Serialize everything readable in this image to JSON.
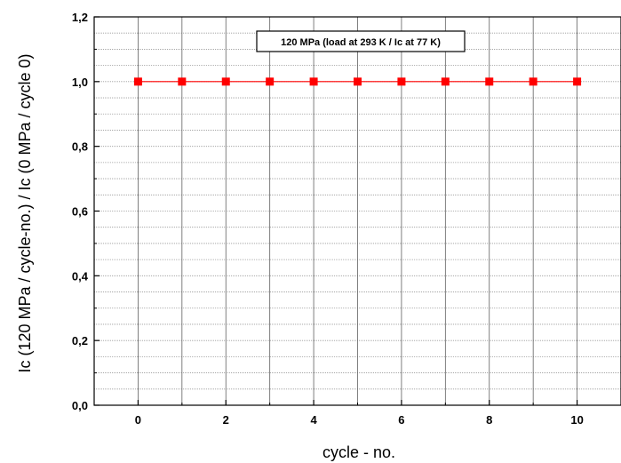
{
  "chart_data": {
    "type": "line",
    "title": "",
    "xlabel": "cycle - no.",
    "ylabel": "Ic (120 MPa / cycle-no.) / Ic (0 MPa / cycle 0)",
    "xlim": [
      -1,
      11
    ],
    "ylim": [
      0,
      1.2
    ],
    "x_ticks": [
      0,
      2,
      4,
      6,
      8,
      10
    ],
    "x_tick_labels": [
      "0",
      "2",
      "4",
      "6",
      "8",
      "10"
    ],
    "y_ticks": [
      0,
      0.2,
      0.4,
      0.6,
      0.8,
      1.0,
      1.2
    ],
    "y_tick_labels": [
      "0,0",
      "0,2",
      "0,4",
      "0,6",
      "0,8",
      "1,0",
      "1,2"
    ],
    "grid": true,
    "legend_position": "top-center",
    "series": [
      {
        "name": "120 MPa (load at 293 K / Ic at 77 K)",
        "color": "#ff0000",
        "marker": "square",
        "x": [
          0,
          1,
          2,
          3,
          4,
          5,
          6,
          7,
          8,
          9,
          10
        ],
        "y": [
          1.0,
          1.0,
          1.0,
          1.0,
          1.0,
          1.0,
          1.0,
          1.0,
          1.0,
          1.0,
          1.0
        ]
      }
    ]
  }
}
